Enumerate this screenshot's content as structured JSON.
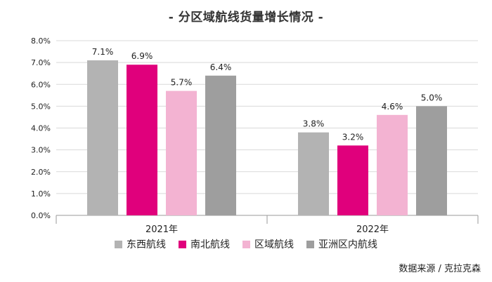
{
  "chart_data": {
    "type": "bar",
    "title": "- 分区域航线货量增长情况 -",
    "categories": [
      "2021年",
      "2022年"
    ],
    "series": [
      {
        "name": "东西航线",
        "color": "#b3b3b3",
        "values": [
          7.1,
          3.8
        ],
        "labels": [
          "7.1%",
          "3.8%"
        ]
      },
      {
        "name": "南北航线",
        "color": "#e0007c",
        "values": [
          6.9,
          3.2
        ],
        "labels": [
          "6.9%",
          "3.2%"
        ]
      },
      {
        "name": "区域航线",
        "color": "#f3b3d2",
        "values": [
          5.7,
          4.6
        ],
        "labels": [
          "5.7%",
          "4.6%"
        ]
      },
      {
        "name": "亚洲区内航线",
        "color": "#9e9e9e",
        "values": [
          6.4,
          5.0
        ],
        "labels": [
          "6.4%",
          "5.0%"
        ]
      }
    ],
    "ylim": [
      0,
      8
    ],
    "yticks": [
      "0.0%",
      "1.0%",
      "2.0%",
      "3.0%",
      "4.0%",
      "5.0%",
      "6.0%",
      "7.0%",
      "8.0%"
    ],
    "grid": true,
    "legend": "bottom-center",
    "xlabel": "",
    "ylabel": ""
  },
  "source": "数据来源 / 克拉克森"
}
